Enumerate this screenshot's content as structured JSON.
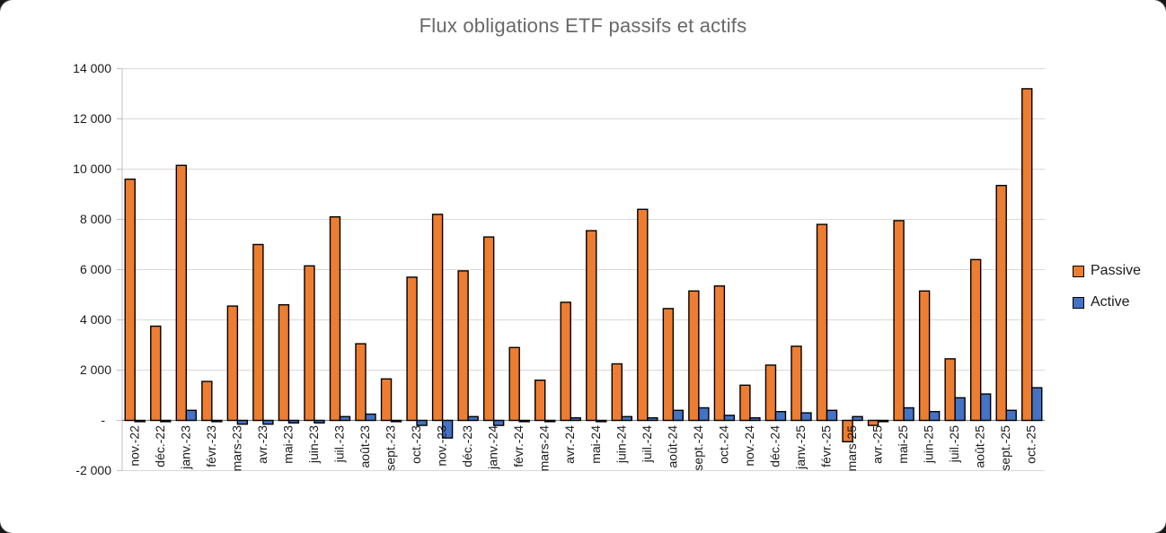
{
  "chart_data": {
    "type": "bar",
    "title": "Flux obligations ETF passifs et actifs",
    "xlabel": "",
    "ylabel": "",
    "grid": true,
    "legend_position": "right",
    "ylim": [
      -2000,
      14000
    ],
    "y_ticks": {
      "labels": [
        "14 000",
        "12 000",
        "10 000",
        "8 000",
        "6 000",
        "4 000",
        "2 000",
        "-",
        "-2 000"
      ],
      "values": [
        14000,
        12000,
        10000,
        8000,
        6000,
        4000,
        2000,
        0,
        -2000
      ]
    },
    "categories": [
      "nov.-22",
      "déc.-22",
      "janv.-23",
      "févr.-23",
      "mars-23",
      "avr.-23",
      "mai-23",
      "juin-23",
      "juil.-23",
      "août-23",
      "sept.-23",
      "oct.-23",
      "nov.-23",
      "déc.-23",
      "janv.-24",
      "févr.-24",
      "mars-24",
      "avr.-24",
      "mai-24",
      "juin-24",
      "juil.-24",
      "août-24",
      "sept.-24",
      "oct.-24",
      "nov.-24",
      "déc.-24",
      "janv.-25",
      "févr.-25",
      "mars-25",
      "avr.-25",
      "mai-25",
      "juin-25",
      "juil.-25",
      "août-25",
      "sept.-25",
      "oct.-25"
    ],
    "series": [
      {
        "name": "Passive",
        "color": "#ED7D31",
        "values": [
          9600,
          3750,
          10150,
          1550,
          4550,
          7000,
          4600,
          6150,
          8100,
          3050,
          1650,
          5700,
          8200,
          5950,
          7300,
          2900,
          1600,
          4700,
          7550,
          2250,
          8400,
          4450,
          5150,
          5350,
          1400,
          2200,
          2950,
          7800,
          -850,
          -200,
          7950,
          5150,
          2450,
          6400,
          9350,
          13200
        ]
      },
      {
        "name": "Active",
        "color": "#4472C4",
        "values": [
          -50,
          -50,
          400,
          -50,
          -150,
          -150,
          -100,
          -100,
          150,
          250,
          -50,
          -200,
          -700,
          150,
          -200,
          -50,
          -50,
          100,
          -50,
          150,
          100,
          400,
          500,
          200,
          100,
          350,
          300,
          400,
          150,
          -50,
          500,
          350,
          900,
          1050,
          400,
          1300
        ]
      }
    ],
    "colors": {
      "passive": "#ED7D31",
      "active": "#4472C4",
      "title_text": "#686868",
      "gridline": "#D9D9D9",
      "zero_axis": "#7F7F7F",
      "axis_line": "#BFBFBF",
      "tick_label": "#1a1a1a"
    }
  }
}
